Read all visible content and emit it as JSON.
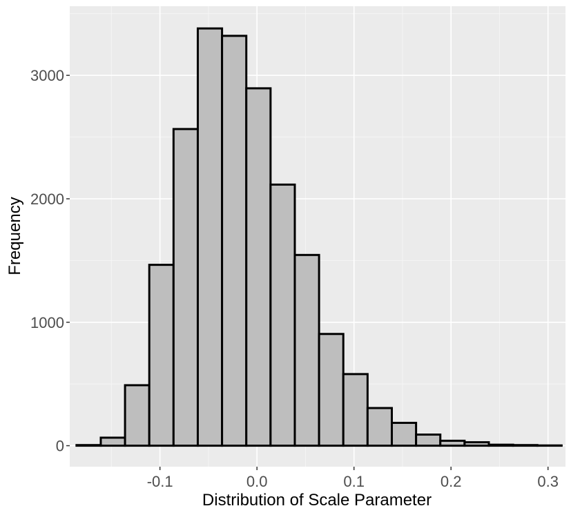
{
  "chart_data": {
    "type": "bar",
    "subtype": "histogram",
    "xlabel": "Distribution of Scale Parameter",
    "ylabel": "Frequency",
    "xlim": [
      -0.193,
      0.318
    ],
    "ylim": [
      -170,
      3560
    ],
    "x_ticks": [
      -0.1,
      0.0,
      0.1,
      0.2,
      0.3
    ],
    "x_tick_labels": [
      "-0.1",
      "0.0",
      "0.1",
      "0.2",
      "0.3"
    ],
    "y_ticks": [
      0,
      1000,
      2000,
      3000
    ],
    "y_tick_labels": [
      "0",
      "1000",
      "2000",
      "3000"
    ],
    "bin_width": 0.025,
    "bins": [
      {
        "x0": -0.186,
        "x1": -0.161,
        "count": 5
      },
      {
        "x0": -0.161,
        "x1": -0.136,
        "count": 65
      },
      {
        "x0": -0.136,
        "x1": -0.111,
        "count": 490
      },
      {
        "x0": -0.111,
        "x1": -0.086,
        "count": 1465
      },
      {
        "x0": -0.086,
        "x1": -0.061,
        "count": 2565
      },
      {
        "x0": -0.061,
        "x1": -0.036,
        "count": 3380
      },
      {
        "x0": -0.036,
        "x1": -0.011,
        "count": 3320
      },
      {
        "x0": -0.011,
        "x1": 0.014,
        "count": 2895
      },
      {
        "x0": 0.014,
        "x1": 0.039,
        "count": 2115
      },
      {
        "x0": 0.039,
        "x1": 0.064,
        "count": 1545
      },
      {
        "x0": 0.064,
        "x1": 0.089,
        "count": 905
      },
      {
        "x0": 0.089,
        "x1": 0.114,
        "count": 580
      },
      {
        "x0": 0.114,
        "x1": 0.139,
        "count": 305
      },
      {
        "x0": 0.139,
        "x1": 0.164,
        "count": 185
      },
      {
        "x0": 0.164,
        "x1": 0.189,
        "count": 90
      },
      {
        "x0": 0.189,
        "x1": 0.214,
        "count": 40
      },
      {
        "x0": 0.214,
        "x1": 0.239,
        "count": 28
      },
      {
        "x0": 0.239,
        "x1": 0.264,
        "count": 8
      },
      {
        "x0": 0.264,
        "x1": 0.289,
        "count": 5
      },
      {
        "x0": 0.289,
        "x1": 0.314,
        "count": 2
      }
    ],
    "colors": {
      "panel_background": "#ebebeb",
      "grid_major": "#ffffff",
      "grid_minor": "#f5f5f5",
      "bar_fill": "#bebebe",
      "bar_outline": "#000000"
    },
    "grid": true,
    "legend": "none"
  }
}
